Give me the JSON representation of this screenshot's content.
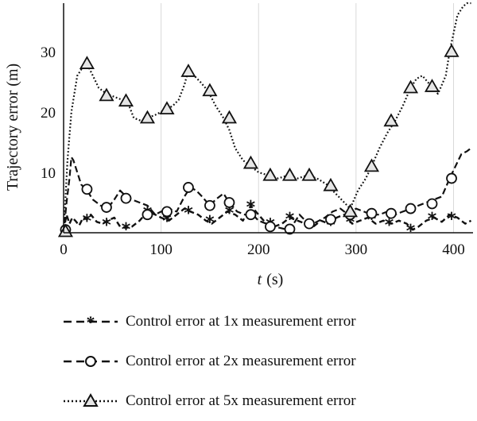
{
  "chart_data": {
    "type": "line",
    "title": "",
    "xlabel_italic": "t",
    "xlabel_unit": "(s)",
    "ylabel": "Trajectory error (m)",
    "xlim": [
      0,
      420
    ],
    "ylim": [
      0,
      38
    ],
    "x_ticks": [
      "0",
      "100",
      "200",
      "300",
      "400"
    ],
    "y_ticks": [
      "10",
      "20",
      "30"
    ],
    "grid": "vertical",
    "legend_position": "bottom",
    "series": [
      {
        "name": "Control error at 1x measurement error",
        "style": "dashed-star",
        "color": "#111111",
        "x": [
          0,
          3,
          6,
          9,
          12,
          16,
          20,
          24,
          28,
          34,
          40,
          45,
          52,
          58,
          64,
          70,
          78,
          86,
          94,
          100,
          108,
          116,
          124,
          130,
          138,
          146,
          152,
          160,
          168,
          176,
          184,
          192,
          200,
          208,
          216,
          224,
          232,
          240,
          248,
          256,
          264,
          272,
          280,
          288,
          296,
          304,
          312,
          320,
          328,
          336,
          344,
          352,
          358,
          364,
          372,
          380,
          388,
          396,
          404,
          412,
          418
        ],
        "y": [
          0.3,
          3,
          1.5,
          2.5,
          2,
          1.2,
          2.5,
          2.2,
          3,
          1.8,
          1.5,
          2,
          2.5,
          1,
          0.8,
          1,
          2,
          3.5,
          3,
          2.5,
          2,
          3,
          4,
          3.5,
          3,
          2,
          1.5,
          2.5,
          3.5,
          3,
          2,
          4.5,
          3,
          1.5,
          1,
          1.5,
          2.5,
          2,
          1.5,
          1,
          2,
          1.5,
          2.5,
          3,
          1.5,
          2,
          2.5,
          1.5,
          2,
          1.5,
          2,
          1.5,
          0.5,
          1,
          2,
          2.5,
          1.8,
          3,
          2.5,
          1.5,
          2
        ]
      },
      {
        "name": "Control error at 2x measurement error",
        "style": "dashed-circle",
        "color": "#111111",
        "x": [
          0,
          3,
          6,
          8,
          10,
          14,
          18,
          24,
          30,
          38,
          45,
          52,
          58,
          64,
          70,
          78,
          86,
          94,
          100,
          108,
          116,
          124,
          130,
          136,
          142,
          150,
          156,
          164,
          170,
          178,
          186,
          194,
          200,
          208,
          216,
          222,
          230,
          236,
          242,
          248,
          256,
          262,
          268,
          276,
          284,
          292,
          300,
          308,
          316,
          324,
          332,
          340,
          348,
          356,
          364,
          372,
          380,
          388,
          396,
          402,
          408,
          414,
          418
        ],
        "y": [
          0,
          5,
          9,
          12.5,
          12,
          10,
          8,
          7,
          5.5,
          4.5,
          4,
          5.5,
          7,
          6,
          5.5,
          5,
          4.5,
          3,
          3.5,
          4,
          3.5,
          6,
          7.5,
          7,
          6,
          4.5,
          5.5,
          6.5,
          5,
          3.5,
          3,
          3,
          2,
          1.5,
          1,
          0.8,
          0.5,
          1.5,
          3,
          2,
          1.5,
          2,
          2.5,
          3.5,
          4,
          3,
          4,
          3.5,
          3,
          3,
          3.5,
          3,
          3.5,
          4,
          4.5,
          5,
          5.5,
          6,
          9,
          11,
          13,
          13.5,
          14
        ]
      },
      {
        "name": "Control error at 5x measurement error",
        "style": "dotted-triangle",
        "color": "#111111",
        "x": [
          0,
          4,
          8,
          14,
          20,
          24,
          30,
          36,
          44,
          52,
          60,
          66,
          72,
          80,
          86,
          94,
          100,
          106,
          112,
          118,
          124,
          128,
          134,
          140,
          148,
          156,
          164,
          170,
          176,
          184,
          192,
          200,
          210,
          220,
          230,
          240,
          250,
          260,
          270,
          276,
          282,
          288,
          294,
          302,
          310,
          316,
          324,
          332,
          340,
          348,
          356,
          362,
          368,
          376,
          384,
          392,
          396,
          400,
          404,
          410,
          414,
          418
        ],
        "y": [
          0,
          12,
          20,
          26,
          27.5,
          28,
          26,
          24,
          23,
          22.5,
          22,
          21.5,
          19,
          18.5,
          19,
          19.5,
          20,
          20.5,
          21,
          22,
          24.5,
          27,
          26,
          25,
          23.5,
          21,
          19,
          17,
          14,
          12,
          11,
          10,
          9.5,
          9,
          9.5,
          9,
          9.5,
          9,
          8,
          7,
          6,
          5,
          4,
          7,
          9,
          11,
          14,
          16.5,
          18.5,
          21,
          24,
          25.5,
          26,
          24.5,
          23,
          26,
          30,
          33,
          36,
          37.5,
          38,
          38
        ]
      }
    ],
    "markers": {
      "Control error at 1x measurement error": [
        [
          24,
          2.2
        ],
        [
          44,
          1.5
        ],
        [
          64,
          0.8
        ],
        [
          86,
          3.5
        ],
        [
          106,
          2.2
        ],
        [
          128,
          3.5
        ],
        [
          150,
          2
        ],
        [
          170,
          3.5
        ],
        [
          192,
          4.5
        ],
        [
          212,
          1.5
        ],
        [
          232,
          2.5
        ],
        [
          252,
          1.2
        ],
        [
          274,
          1.5
        ],
        [
          294,
          2
        ],
        [
          316,
          2.5
        ],
        [
          334,
          1.5
        ],
        [
          356,
          0.5
        ],
        [
          378,
          2.5
        ],
        [
          398,
          2.5
        ]
      ],
      "Control error at 2x measurement error": [
        [
          2,
          0.5
        ],
        [
          24,
          7.2
        ],
        [
          44,
          4.2
        ],
        [
          64,
          5.7
        ],
        [
          86,
          3
        ],
        [
          106,
          3.5
        ],
        [
          128,
          7.5
        ],
        [
          150,
          4.5
        ],
        [
          170,
          5
        ],
        [
          192,
          3
        ],
        [
          212,
          1
        ],
        [
          232,
          0.6
        ],
        [
          252,
          1.5
        ],
        [
          274,
          2.2
        ],
        [
          294,
          3
        ],
        [
          316,
          3.2
        ],
        [
          336,
          3.2
        ],
        [
          356,
          4
        ],
        [
          378,
          4.8
        ],
        [
          398,
          9
        ]
      ],
      "Control error at 5x measurement error": [
        [
          2,
          0.2
        ],
        [
          24,
          28
        ],
        [
          44,
          22.7
        ],
        [
          64,
          21.8
        ],
        [
          86,
          19
        ],
        [
          106,
          20.5
        ],
        [
          128,
          26.7
        ],
        [
          150,
          23.5
        ],
        [
          170,
          19
        ],
        [
          192,
          11.5
        ],
        [
          212,
          9.5
        ],
        [
          232,
          9.5
        ],
        [
          252,
          9.5
        ],
        [
          274,
          7.8
        ],
        [
          294,
          3.5
        ],
        [
          316,
          11
        ],
        [
          336,
          18.5
        ],
        [
          356,
          24
        ],
        [
          378,
          24.2
        ],
        [
          398,
          30
        ]
      ]
    }
  }
}
